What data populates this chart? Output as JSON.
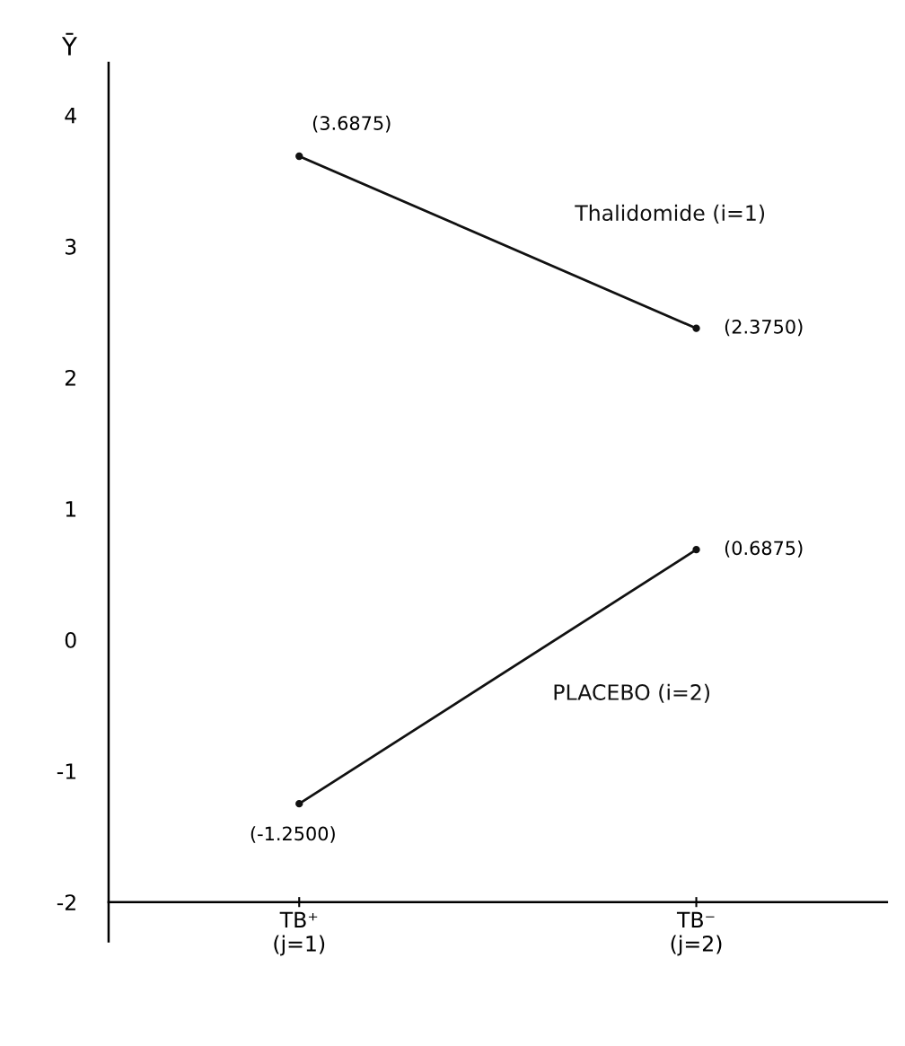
{
  "chart_data": {
    "type": "line",
    "ylabel": "Ȳ",
    "categories": [
      "TB⁺\n(j=1)",
      "TB⁻\n(j=2)"
    ],
    "series": [
      {
        "name": "Thalidomide (i=1)",
        "color": "#111111",
        "values": [
          3.6875,
          2.375
        ],
        "value_labels": [
          "(3.6875)",
          "(2.3750)"
        ]
      },
      {
        "name": "PLACEBO (i=2)",
        "color": "#111111",
        "values": [
          -1.25,
          0.6875
        ],
        "value_labels": [
          "(-1.2500)",
          "(0.6875)"
        ]
      }
    ],
    "ylim": [
      -2.3,
      4.4
    ],
    "yticks": [
      -2,
      -1,
      0,
      1,
      2,
      3,
      4
    ],
    "marker": "circle",
    "line_style": "solid",
    "grid": false,
    "legend": false
  }
}
